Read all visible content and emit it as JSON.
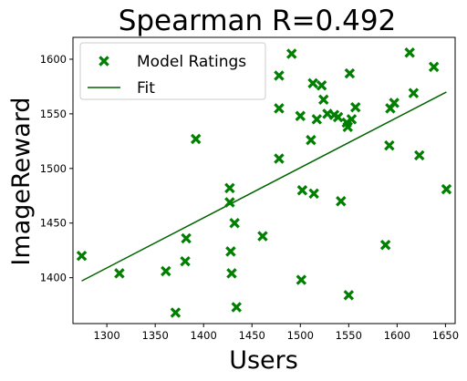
{
  "chart_data": {
    "type": "scatter",
    "title": "Spearman R=0.492",
    "xlabel": "Users",
    "ylabel": "ImageReward",
    "xlim": [
      1265,
      1660
    ],
    "ylim": [
      1358,
      1620
    ],
    "xticks": [
      1300,
      1350,
      1400,
      1450,
      1500,
      1550,
      1600,
      1650
    ],
    "yticks": [
      1400,
      1450,
      1500,
      1550,
      1600
    ],
    "grid": false,
    "legend_position": "top-left",
    "colors": {
      "marker": "#007f00",
      "fit": "#006400"
    },
    "series": [
      {
        "name": "Model Ratings",
        "kind": "scatter",
        "marker": "x-filled",
        "points": [
          [
            1274,
            1420
          ],
          [
            1313,
            1404
          ],
          [
            1361,
            1406
          ],
          [
            1371,
            1368
          ],
          [
            1381,
            1415
          ],
          [
            1382,
            1436
          ],
          [
            1392,
            1527
          ],
          [
            1427,
            1469
          ],
          [
            1427,
            1482
          ],
          [
            1428,
            1424
          ],
          [
            1429,
            1404
          ],
          [
            1432,
            1450
          ],
          [
            1434,
            1373
          ],
          [
            1461,
            1438
          ],
          [
            1478,
            1555
          ],
          [
            1478,
            1585
          ],
          [
            1478,
            1509
          ],
          [
            1491,
            1605
          ],
          [
            1500,
            1548
          ],
          [
            1501,
            1398
          ],
          [
            1502,
            1480
          ],
          [
            1511,
            1526
          ],
          [
            1513,
            1578
          ],
          [
            1514,
            1477
          ],
          [
            1517,
            1545
          ],
          [
            1522,
            1576
          ],
          [
            1524,
            1563
          ],
          [
            1528,
            1550
          ],
          [
            1535,
            1549
          ],
          [
            1539,
            1547
          ],
          [
            1542,
            1470
          ],
          [
            1548,
            1542
          ],
          [
            1549,
            1538
          ],
          [
            1550,
            1384
          ],
          [
            1551,
            1587
          ],
          [
            1553,
            1545
          ],
          [
            1557,
            1556
          ],
          [
            1588,
            1430
          ],
          [
            1592,
            1521
          ],
          [
            1593,
            1555
          ],
          [
            1597,
            1560
          ],
          [
            1613,
            1606
          ],
          [
            1617,
            1569
          ],
          [
            1623,
            1512
          ],
          [
            1638,
            1593
          ],
          [
            1651,
            1481
          ]
        ]
      },
      {
        "name": "Fit",
        "kind": "line",
        "points": [
          [
            1274,
            1397
          ],
          [
            1651,
            1570
          ]
        ]
      }
    ]
  }
}
